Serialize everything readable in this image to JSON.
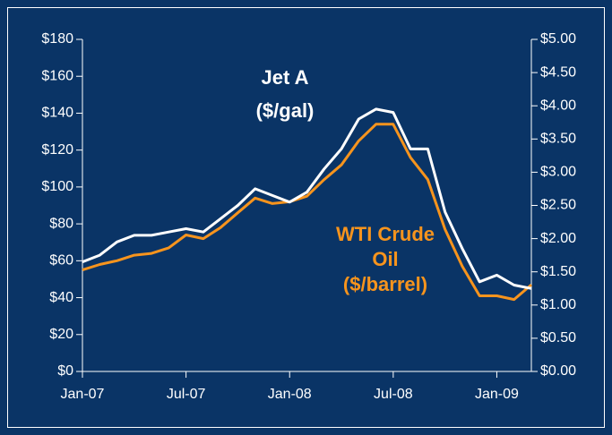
{
  "chart_data": {
    "type": "line",
    "annotations": [
      "Jet A",
      "($/gal)",
      "WTI Crude",
      "Oil",
      "($/barrel)"
    ],
    "x": [
      "2007-01",
      "2007-02",
      "2007-03",
      "2007-04",
      "2007-05",
      "2007-06",
      "2007-07",
      "2007-08",
      "2007-09",
      "2007-10",
      "2007-11",
      "2007-12",
      "2008-01",
      "2008-02",
      "2008-03",
      "2008-04",
      "2008-05",
      "2008-06",
      "2008-07",
      "2008-08",
      "2008-09",
      "2008-10",
      "2008-11",
      "2008-12",
      "2009-01",
      "2009-02",
      "2009-03"
    ],
    "xlim": [
      "2007-01",
      "2009-03"
    ],
    "xticks": [
      {
        "value": "2007-01",
        "label": "Jan-07"
      },
      {
        "value": "2007-07",
        "label": "Jul-07"
      },
      {
        "value": "2008-01",
        "label": "Jan-08"
      },
      {
        "value": "2008-07",
        "label": "Jul-08"
      },
      {
        "value": "2009-01",
        "label": "Jan-09"
      }
    ],
    "ylim": [
      0,
      180
    ],
    "yticks": [
      {
        "value": 0,
        "label": "$0"
      },
      {
        "value": 20,
        "label": "$20"
      },
      {
        "value": 40,
        "label": "$40"
      },
      {
        "value": 60,
        "label": "$60"
      },
      {
        "value": 80,
        "label": "$80"
      },
      {
        "value": 100,
        "label": "$100"
      },
      {
        "value": 120,
        "label": "$120"
      },
      {
        "value": 140,
        "label": "$140"
      },
      {
        "value": 160,
        "label": "$160"
      },
      {
        "value": 180,
        "label": "$180"
      }
    ],
    "y2lim": [
      0,
      5
    ],
    "y2ticks": [
      {
        "value": 0,
        "label": "$0.00"
      },
      {
        "value": 0.5,
        "label": "$0.50"
      },
      {
        "value": 1,
        "label": "$1.00"
      },
      {
        "value": 1.5,
        "label": "$1.50"
      },
      {
        "value": 2,
        "label": "$2.00"
      },
      {
        "value": 2.5,
        "label": "$2.50"
      },
      {
        "value": 3,
        "label": "$3.00"
      },
      {
        "value": 3.5,
        "label": "$3.50"
      },
      {
        "value": 4,
        "label": "$4.00"
      },
      {
        "value": 4.5,
        "label": "$4.50"
      },
      {
        "value": 5,
        "label": "$5.00"
      }
    ],
    "series": [
      {
        "name": "WTI Crude Oil ($/barrel)",
        "color": "#f7941d",
        "values": [
          55,
          58,
          60,
          63,
          64,
          67,
          74,
          72,
          78,
          86,
          94,
          91,
          92,
          95,
          104,
          112,
          125,
          134,
          134,
          116,
          104,
          77,
          57,
          41,
          41,
          39,
          47
        ]
      },
      {
        "name": "Jet A ($/gal)",
        "color": "#ffffff",
        "axis": "y2",
        "values": [
          1.65,
          1.75,
          1.95,
          2.05,
          2.05,
          2.1,
          2.15,
          2.1,
          2.3,
          2.5,
          2.75,
          2.65,
          2.55,
          2.7,
          3.05,
          3.35,
          3.8,
          3.95,
          3.9,
          3.35,
          3.35,
          2.4,
          1.85,
          1.35,
          1.45,
          1.3,
          1.25
        ]
      }
    ]
  }
}
